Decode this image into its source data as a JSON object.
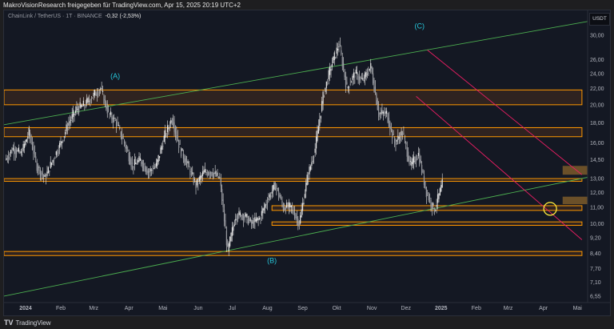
{
  "header": {
    "shared_by": "MakroVisionResearch freigegeben für TradingView.com, Apr 15, 2025 20:19 UTC+2"
  },
  "legend": {
    "symbol": "ChainLink / TetherUS · 1T · BINANCE",
    "change": "-0,32 (-2,53%)"
  },
  "footer": {
    "logo": "TV",
    "brand": "TradingView"
  },
  "chart_data": {
    "type": "candlestick",
    "currency": "USDT",
    "scale": "log",
    "ylim": [
      6.4,
      31.5
    ],
    "y_ticks": [
      "30,00",
      "26,00",
      "24,00",
      "22,00",
      "20,00",
      "18,00",
      "16,00",
      "14,50",
      "13,00",
      "12,00",
      "11,00",
      "10,00",
      "9,20",
      "8,40",
      "7,70",
      "7,10",
      "6,55"
    ],
    "y_tick_values": [
      30,
      26,
      24,
      22,
      20,
      18,
      16,
      14.5,
      13,
      12,
      11,
      10,
      9.2,
      8.4,
      7.7,
      7.1,
      6.55
    ],
    "x_ticks": [
      "2024",
      "Feb",
      "Mrz",
      "Apr",
      "Mai",
      "Jun",
      "Jul",
      "Aug",
      "Sep",
      "Okt",
      "Nov",
      "Dez",
      "2025",
      "Feb",
      "Mrz",
      "Apr",
      "Mai"
    ],
    "x_tick_dates": [
      "2024-01-01",
      "2024-02-01",
      "2024-03-01",
      "2024-04-01",
      "2024-05-01",
      "2024-06-01",
      "2024-07-01",
      "2024-08-01",
      "2024-09-01",
      "2024-10-01",
      "2024-11-01",
      "2024-12-01",
      "2025-01-01",
      "2025-02-01",
      "2025-03-01",
      "2025-04-01",
      "2025-05-01"
    ],
    "x_range": [
      "2023-12-13",
      "2025-05-10"
    ],
    "closes": {
      "start": "2023-12-15",
      "interval_days": 7,
      "values": [
        14.5,
        15.5,
        15,
        17,
        14,
        13,
        14.5,
        16,
        18,
        19.5,
        20,
        21,
        22,
        19,
        18,
        16,
        14,
        14.5,
        13.5,
        14,
        16.5,
        18.5,
        15.5,
        14,
        12.5,
        13.5,
        13.5,
        13,
        8.5,
        10.5,
        10.5,
        10,
        10.3,
        11.5,
        12.5,
        11,
        11,
        10,
        13,
        15.5,
        21,
        25,
        28.5,
        22,
        24,
        23,
        25,
        19,
        19,
        16,
        17,
        14,
        15,
        12,
        10.8,
        12.6
      ]
    },
    "zones": [
      {
        "low": 20.0,
        "high": 21.8,
        "start": "2023-12-13",
        "end": "2025-05-05"
      },
      {
        "low": 16.6,
        "high": 17.5,
        "start": "2023-12-13",
        "end": "2025-05-05"
      },
      {
        "low": 12.8,
        "high": 13.0,
        "start": "2023-12-13",
        "end": "2025-05-05"
      },
      {
        "low": 10.8,
        "high": 11.1,
        "start": "2024-08-05",
        "end": "2025-05-05"
      },
      {
        "low": 9.9,
        "high": 10.1,
        "start": "2024-08-05",
        "end": "2025-05-05"
      },
      {
        "low": 8.3,
        "high": 8.5,
        "start": "2023-12-13",
        "end": "2025-05-05"
      }
    ],
    "target_boxes": [
      {
        "low": 13.3,
        "high": 14.0,
        "start": "2025-04-18",
        "end": "2025-05-10"
      },
      {
        "low": 11.2,
        "high": 11.7,
        "start": "2025-04-18",
        "end": "2025-05-10"
      }
    ],
    "trendlines": [
      {
        "color": "#4caf50",
        "from": [
          "2023-12-13",
          17.8
        ],
        "to": [
          "2025-05-10",
          32.5
        ]
      },
      {
        "color": "#4caf50",
        "from": [
          "2023-12-13",
          6.55
        ],
        "to": [
          "2025-05-10",
          13.1
        ]
      },
      {
        "color": "#e91e63",
        "from": [
          "2024-12-20",
          27.5
        ],
        "to": [
          "2025-05-05",
          13.3
        ]
      },
      {
        "color": "#e91e63",
        "from": [
          "2024-12-10",
          21
        ],
        "to": [
          "2025-05-05",
          9.1
        ]
      }
    ],
    "annotations": [
      {
        "text": "(A)",
        "date": "2024-03-20",
        "price": 23.3
      },
      {
        "text": "(B)",
        "date": "2024-08-05",
        "price": 7.95
      },
      {
        "text": "(C)",
        "date": "2024-12-13",
        "price": 31.2
      }
    ],
    "highlight_circle": {
      "date": "2025-04-07",
      "price": 10.9
    },
    "colors": {
      "zone": "#ff9800",
      "zone_fill": "#3a2820",
      "box_fill": "#7a5a2a",
      "candle": "#e6e6e6",
      "wave_label": "#26c6da",
      "circle": "#ffeb3b",
      "background": "#141823"
    }
  }
}
